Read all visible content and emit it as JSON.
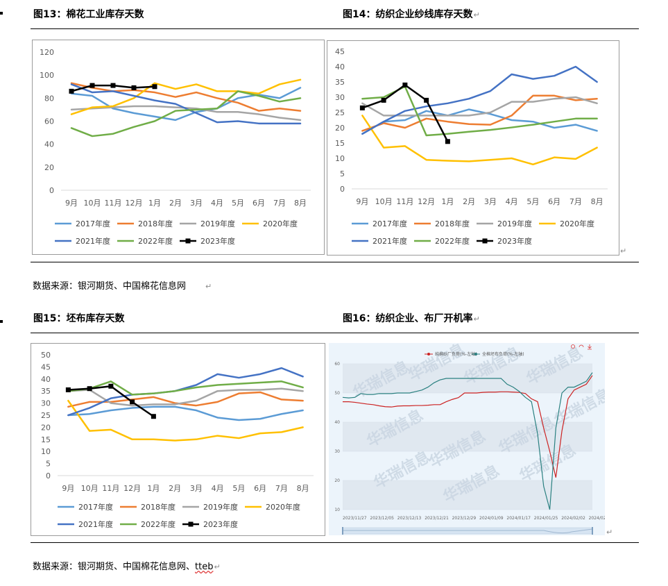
{
  "figures": {
    "fig13": {
      "title": "图13：棉花工业库存天数"
    },
    "fig14": {
      "title": "图14：纺织企业纱线库存天数",
      "return_mark": "↵"
    },
    "fig15": {
      "title": "图15：坯布库存天数"
    },
    "fig16": {
      "title": "图16：纺织企业、布厂开机率",
      "return_mark": "↵"
    }
  },
  "sources": {
    "row1": "数据来源：银河期货、中国棉花信息网",
    "row1_mark": "↵",
    "row2_prefix": "数据来源：银河期货、中国棉花信息网、",
    "row2_tteb": "tteb",
    "row2_mark": "↵"
  },
  "colors": {
    "2017年度": "#5b9bd5",
    "2018年度": "#ed7d31",
    "2019年度": "#a5a5a5",
    "2020年度": "#ffc000",
    "2021年度": "#4472c4",
    "2022年度": "#70ad47",
    "2023年度": "#000000"
  },
  "chart_data": [
    {
      "id": "fig13",
      "type": "line",
      "categories": [
        "9月",
        "10月",
        "11月",
        "12月",
        "1月",
        "2月",
        "3月",
        "4月",
        "5月",
        "6月",
        "7月",
        "8月"
      ],
      "yticks": [
        0,
        20,
        40,
        60,
        80,
        100,
        120
      ],
      "ylim": [
        0,
        120
      ],
      "grid": false,
      "legend": "bottom",
      "series": [
        {
          "name": "2017年度",
          "values": [
            84,
            82,
            71,
            67,
            64,
            61,
            68,
            71,
            80,
            83,
            80,
            89
          ]
        },
        {
          "name": "2018年度",
          "values": [
            93,
            89,
            86,
            87,
            85,
            81,
            85,
            80,
            76,
            69,
            71,
            69
          ]
        },
        {
          "name": "2019年度",
          "values": [
            70,
            71,
            72,
            73,
            73,
            72,
            71,
            68,
            68,
            66,
            63,
            61
          ]
        },
        {
          "name": "2020年度",
          "values": [
            66,
            72,
            73,
            80,
            93,
            88,
            92,
            86,
            86,
            84,
            92,
            96
          ]
        },
        {
          "name": "2021年度",
          "values": [
            92,
            85,
            86,
            82,
            78,
            75,
            67,
            59,
            60,
            58,
            58,
            58
          ]
        },
        {
          "name": "2022年度",
          "values": [
            54,
            47,
            49,
            55,
            60,
            69,
            70,
            71,
            86,
            82,
            77,
            80
          ]
        },
        {
          "name": "2023年度",
          "values": [
            86,
            91,
            91,
            89,
            90,
            null,
            null,
            null,
            null,
            null,
            null,
            null
          ]
        }
      ]
    },
    {
      "id": "fig14",
      "type": "line",
      "categories": [
        "9月",
        "10月",
        "11月",
        "12月",
        "1月",
        "2月",
        "3月",
        "4月",
        "5月",
        "6月",
        "7月",
        "8月"
      ],
      "yticks": [
        0,
        5,
        10,
        15,
        20,
        25,
        30,
        35,
        40,
        45
      ],
      "ylim": [
        0,
        45
      ],
      "grid": false,
      "legend": "bottom",
      "series": [
        {
          "name": "2017年度",
          "values": [
            18,
            22,
            22.5,
            25.5,
            24,
            26,
            24.5,
            22.5,
            22,
            20,
            21,
            19
          ]
        },
        {
          "name": "2018年度",
          "values": [
            19,
            21.5,
            20,
            23,
            22,
            21.2,
            21,
            24,
            30.5,
            30.5,
            29,
            29.5
          ]
        },
        {
          "name": "2019年度",
          "values": [
            28,
            24,
            24,
            24,
            24,
            24,
            25,
            28.5,
            28.5,
            29.5,
            30,
            28
          ]
        },
        {
          "name": "2020年度",
          "values": [
            24,
            13.5,
            14,
            9.5,
            9.2,
            9,
            9.5,
            10,
            8,
            10.3,
            9.8,
            13.5
          ]
        },
        {
          "name": "2021年度",
          "values": [
            18,
            22,
            25.5,
            27,
            28,
            29.5,
            32,
            37.5,
            36,
            37,
            40,
            35
          ]
        },
        {
          "name": "2022年度",
          "values": [
            29.5,
            30,
            33.5,
            17.5,
            18,
            18.7,
            19.3,
            20.1,
            21,
            22,
            23,
            23
          ]
        },
        {
          "name": "2023年度",
          "values": [
            26.5,
            29,
            34,
            29,
            15.5,
            null,
            null,
            null,
            null,
            null,
            null,
            null
          ]
        }
      ]
    },
    {
      "id": "fig15",
      "type": "line",
      "categories": [
        "9月",
        "10月",
        "11月",
        "12月",
        "1月",
        "2月",
        "3月",
        "4月",
        "5月",
        "6月",
        "7月",
        "8月"
      ],
      "yticks": [
        0,
        5,
        10,
        15,
        20,
        25,
        30,
        35,
        40,
        45,
        50
      ],
      "ylim": [
        0,
        50
      ],
      "grid": false,
      "legend": "bottom",
      "series": [
        {
          "name": "2017年度",
          "values": [
            25,
            25.5,
            27,
            28,
            28.5,
            28.5,
            27,
            24,
            23,
            23.5,
            25.5,
            27
          ]
        },
        {
          "name": "2018年度",
          "values": [
            28.5,
            30.5,
            30.5,
            31.5,
            32.5,
            30,
            29,
            30.5,
            34,
            34.5,
            31.5,
            31
          ]
        },
        {
          "name": "2019年度",
          "values": [
            35,
            35.5,
            30,
            29,
            29.5,
            29.5,
            31,
            35,
            35.5,
            35.5,
            36,
            35
          ]
        },
        {
          "name": "2020年度",
          "values": [
            31,
            18.5,
            19,
            15,
            15,
            14.5,
            15,
            16.5,
            15.5,
            17.5,
            18,
            20
          ]
        },
        {
          "name": "2021年度",
          "values": [
            25,
            28,
            32,
            33.5,
            34,
            35,
            37.5,
            42,
            40.5,
            42,
            44.5,
            41
          ]
        },
        {
          "name": "2022年度",
          "values": [
            35,
            36,
            39,
            33.5,
            34,
            35,
            36.5,
            37.5,
            38,
            38.5,
            39,
            36.5
          ]
        },
        {
          "name": "2023年度",
          "values": [
            35.5,
            36,
            37,
            30.5,
            24.5,
            null,
            null,
            null,
            null,
            null,
            null,
            null
          ]
        }
      ]
    },
    {
      "id": "fig16",
      "type": "line",
      "xticks": [
        "2023/11/27",
        "2023/12/05",
        "2023/12/13",
        "2023/12/21",
        "2023/12/29",
        "2024/01/09",
        "2024/01/17",
        "2024/01/25",
        "2024/02/02",
        "2024/02/19"
      ],
      "yticks": [
        10,
        20,
        30,
        40,
        50,
        60
      ],
      "ylim": [
        10,
        60
      ],
      "grid": true,
      "legend": "top",
      "toolbar_icons": [
        "zoom-icon",
        "restore-icon",
        "download-icon"
      ],
      "series": [
        {
          "name": "纯棉纱厂负荷(%-左轴)",
          "color": "#cc2222",
          "values": [
            47,
            47,
            46.8,
            46.5,
            46.2,
            46,
            45.6,
            45.3,
            45.2,
            45.5,
            45.6,
            45.6,
            45.7,
            45.7,
            45.8,
            46,
            46,
            47,
            47.8,
            48.4,
            50,
            50,
            50,
            50.2,
            50.3,
            50.3,
            50.4,
            50.4,
            50.3,
            50.2,
            49.8,
            48,
            47,
            38,
            30,
            21,
            37,
            48,
            51,
            52,
            53,
            56
          ]
        },
        {
          "name": "全棉坯布负荷(%-左轴)",
          "color": "#2a8080",
          "values": [
            48.5,
            48.3,
            48.5,
            49.8,
            49.5,
            49.5,
            49.8,
            49.8,
            49.8,
            50,
            50,
            50,
            50.5,
            51,
            52,
            53.5,
            54.5,
            55,
            55,
            55,
            55,
            55,
            55,
            55,
            55,
            55,
            55,
            53,
            52,
            50.5,
            48.5,
            47,
            36,
            18,
            10,
            38,
            50,
            52,
            52,
            53,
            54,
            57
          ]
        }
      ]
    }
  ]
}
